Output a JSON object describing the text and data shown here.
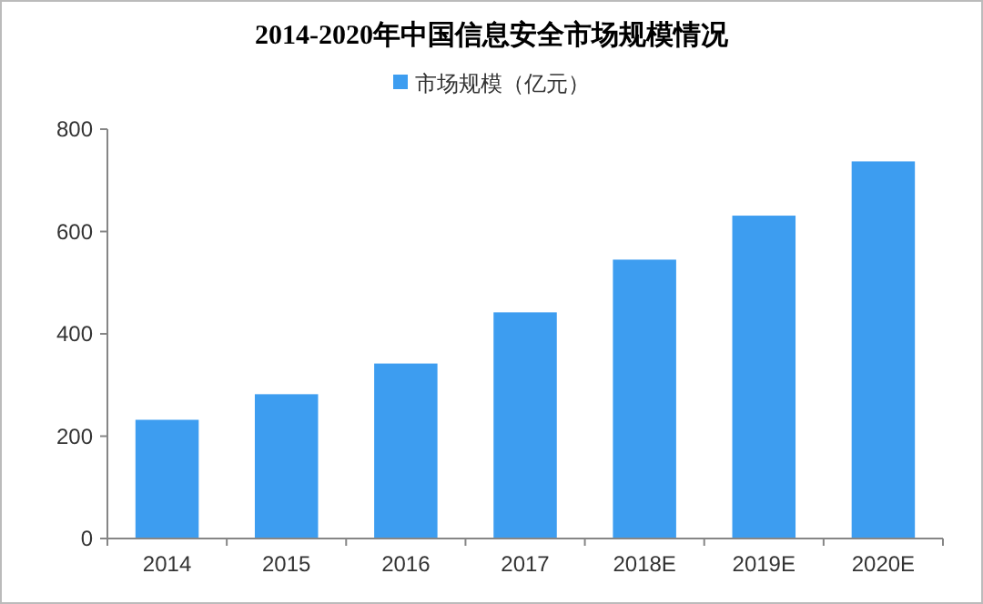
{
  "chart_data": {
    "type": "bar",
    "title": "2014-2020年中国信息安全市场规模情况",
    "categories": [
      "2014",
      "2015",
      "2016",
      "2017",
      "2018E",
      "2019E",
      "2020E"
    ],
    "series": [
      {
        "name": "市场规模（亿元）",
        "color": "#3d9df0",
        "values": [
          232,
          282,
          342,
          442,
          545,
          631,
          737
        ]
      }
    ],
    "ylim": [
      0,
      800
    ],
    "yticks": [
      0,
      200,
      400,
      600,
      800
    ],
    "grid": false,
    "legend": "top"
  }
}
